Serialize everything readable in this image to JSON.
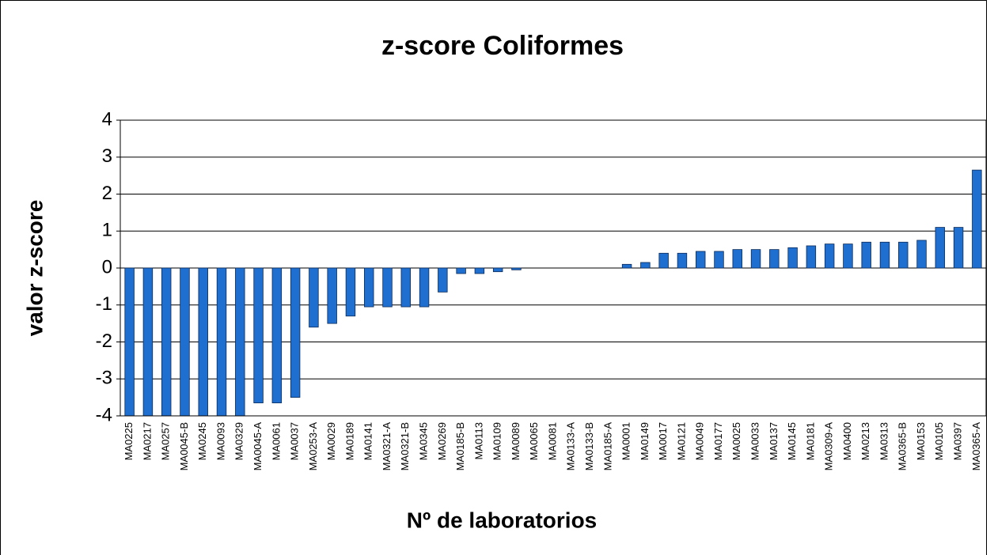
{
  "chart_data": {
    "type": "bar",
    "title": "z-score Coliformes",
    "x_label": "Nº de laboratorios",
    "y_label": "valor z-score",
    "categories": [
      "MA0225",
      "MA0217",
      "MA0257",
      "MA0045-B",
      "MA0245",
      "MA0093",
      "MA0329",
      "MA0045-A",
      "MA0061",
      "MA0037",
      "MA0253-A",
      "MA0029",
      "MA0189",
      "MA0141",
      "MA0321-A",
      "MA0321-B",
      "MA0345",
      "MA0269",
      "MA0185-B",
      "MA0113",
      "MA0109",
      "MA0089",
      "MA0065",
      "MA0081",
      "MA0133-A",
      "MA0133-B",
      "MA0185-A",
      "MA0001",
      "MA0149",
      "MA0017",
      "MA0121",
      "MA0049",
      "MA0177",
      "MA0025",
      "MA0033",
      "MA0137",
      "MA0145",
      "MA0181",
      "MA0309-A",
      "MA0400",
      "MA0213",
      "MA0313",
      "MA0365-B",
      "MA0153",
      "MA0105",
      "MA0397",
      "MA0365-A"
    ],
    "values": [
      -4,
      -4,
      -4,
      -4,
      -4,
      -4,
      -4,
      -3.65,
      -3.65,
      -3.5,
      -1.6,
      -1.5,
      -1.3,
      -1.05,
      -1.05,
      -1.05,
      -1.05,
      -0.65,
      -0.15,
      -0.15,
      -0.1,
      -0.05,
      0,
      0,
      0,
      0,
      0,
      0.1,
      0.15,
      0.4,
      0.4,
      0.45,
      0.45,
      0.5,
      0.5,
      0.5,
      0.55,
      0.6,
      0.65,
      0.65,
      0.7,
      0.7,
      0.7,
      0.75,
      1.1,
      1.1,
      2.65
    ],
    "color": "#1f6fd0",
    "ylim": [
      -4,
      4
    ],
    "yticks": [
      -4,
      -3,
      -2,
      -1,
      0,
      1,
      2,
      3,
      4
    ],
    "grid": true
  }
}
